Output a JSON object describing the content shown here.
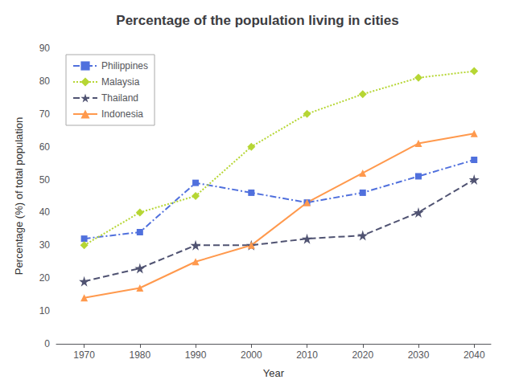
{
  "chart_data": {
    "type": "line",
    "title": "Percentage of the population living in cities",
    "xlabel": "Year",
    "ylabel": "Percentage (%) of total population",
    "x": [
      1970,
      1980,
      1990,
      2000,
      2010,
      2020,
      2030,
      2040
    ],
    "series": [
      {
        "name": "Philippines",
        "values": [
          32,
          34,
          49,
          46,
          43,
          46,
          51,
          56
        ],
        "line_style": "dashdot",
        "marker": "square"
      },
      {
        "name": "Malaysia",
        "values": [
          30,
          40,
          45,
          60,
          70,
          76,
          81,
          83
        ],
        "line_style": "dotted",
        "marker": "diamond"
      },
      {
        "name": "Thailand",
        "values": [
          19,
          23,
          30,
          30,
          32,
          33,
          40,
          50
        ],
        "line_style": "dashed",
        "marker": "star"
      },
      {
        "name": "Indonesia",
        "values": [
          14,
          17,
          25,
          30,
          43,
          52,
          61,
          64
        ],
        "line_style": "solid",
        "marker": "triangle"
      }
    ],
    "xlim": [
      1965,
      2043
    ],
    "xticks": [
      1970,
      1980,
      1990,
      2000,
      2010,
      2020,
      2030,
      2040
    ],
    "ylim": [
      0,
      90
    ],
    "yticks": [
      0,
      10,
      20,
      30,
      40,
      50,
      60,
      70,
      80,
      90
    ],
    "grid": false,
    "legend": "upper left"
  }
}
